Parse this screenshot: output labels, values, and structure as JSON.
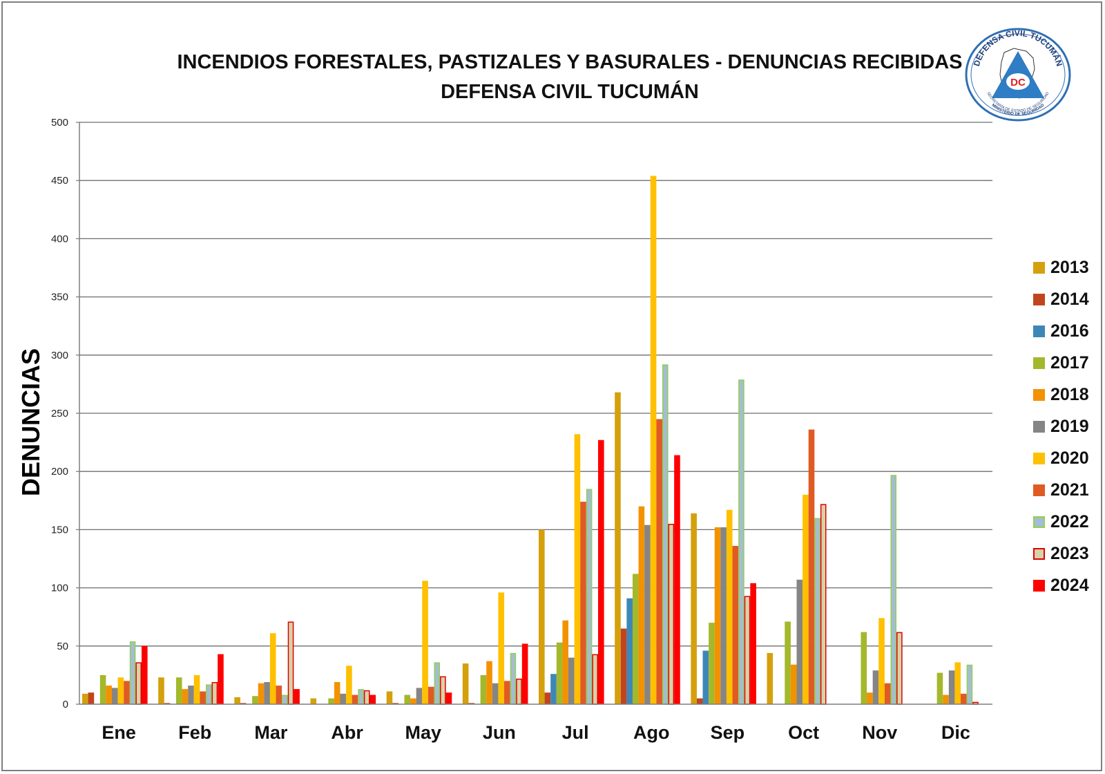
{
  "chart_data": {
    "type": "bar",
    "title": "INCENDIOS FORESTALES, PASTIZALES Y BASURALES  -  DENUNCIAS RECIBIDAS",
    "subtitle": "DEFENSA CIVIL TUCUMÁN",
    "xlabel": "",
    "ylabel": "DENUNCIAS",
    "ylim": [
      0,
      500
    ],
    "yticks": [
      0,
      50,
      100,
      150,
      200,
      250,
      300,
      350,
      400,
      450,
      500
    ],
    "grid": true,
    "legend_position": "right",
    "categories": [
      "Ene",
      "Feb",
      "Mar",
      "Abr",
      "May",
      "Jun",
      "Jul",
      "Ago",
      "Sep",
      "Oct",
      "Nov",
      "Dic"
    ],
    "series": [
      {
        "name": "2013",
        "color": "#d4a00c",
        "values": [
          9,
          23,
          6,
          5,
          11,
          35,
          150,
          268,
          164,
          44,
          0,
          0
        ]
      },
      {
        "name": "2014",
        "color": "#c0451f",
        "values": [
          10,
          1,
          1,
          0,
          1,
          1,
          10,
          65,
          5,
          0,
          0,
          0
        ]
      },
      {
        "name": "2016",
        "color": "#3d87b8",
        "values": [
          0,
          0,
          0,
          0,
          0,
          0,
          26,
          91,
          46,
          0,
          0,
          0
        ]
      },
      {
        "name": "2017",
        "color": "#a4b82c",
        "values": [
          25,
          23,
          7,
          5,
          8,
          25,
          53,
          112,
          70,
          71,
          62,
          27
        ]
      },
      {
        "name": "2018",
        "color": "#f39200",
        "values": [
          16,
          13,
          18,
          19,
          5,
          37,
          72,
          170,
          152,
          34,
          10,
          8
        ]
      },
      {
        "name": "2019",
        "color": "#858585",
        "values": [
          14,
          16,
          19,
          9,
          14,
          18,
          40,
          154,
          152,
          107,
          29,
          29
        ]
      },
      {
        "name": "2020",
        "color": "#ffc000",
        "values": [
          23,
          25,
          61,
          33,
          106,
          96,
          232,
          454,
          167,
          180,
          74,
          36
        ]
      },
      {
        "name": "2021",
        "color": "#e05a24",
        "values": [
          20,
          11,
          16,
          8,
          15,
          20,
          174,
          245,
          136,
          236,
          18,
          9
        ]
      },
      {
        "name": "2022",
        "color": "#a5bcd4",
        "border": "#92d050",
        "values": [
          54,
          17,
          8,
          13,
          36,
          44,
          185,
          292,
          279,
          160,
          197,
          34
        ]
      },
      {
        "name": "2023",
        "color": "#d5d3a8",
        "border": "#e00000",
        "values": [
          36,
          19,
          71,
          12,
          24,
          22,
          43,
          155,
          93,
          172,
          62,
          2
        ]
      },
      {
        "name": "2024",
        "color": "#ff0000",
        "values": [
          50,
          43,
          13,
          8,
          10,
          52,
          227,
          214,
          104,
          0,
          0,
          0
        ]
      }
    ]
  },
  "logo": {
    "top_text": "DEFENSA CIVIL TUCUMÁN",
    "badge": "DC",
    "bottom_text_1": "SECRETARÍA DE ESTADO DE SEGURIDAD",
    "bottom_text_2": "MINISTERIO DE SEGURIDAD"
  }
}
